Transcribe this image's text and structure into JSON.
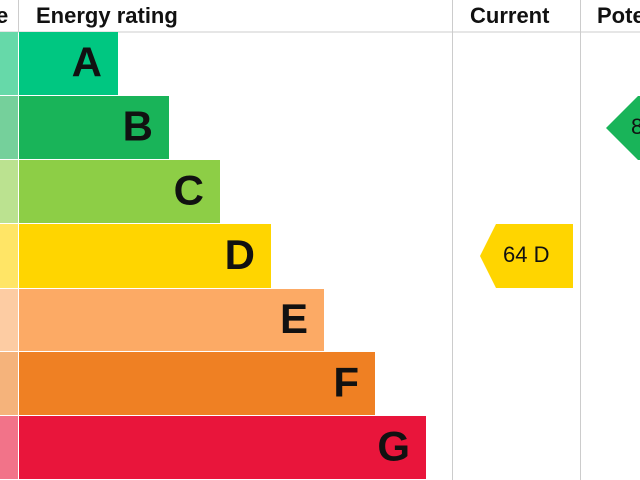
{
  "header": {
    "score": "e",
    "rating": "Energy rating",
    "current": "Current",
    "potential": "Pote"
  },
  "bands": [
    {
      "letter": "A",
      "color": "#00c781",
      "light": "#66d9a9"
    },
    {
      "letter": "B",
      "color": "#19b459",
      "light": "#75d09b"
    },
    {
      "letter": "C",
      "color": "#8dce46",
      "light": "#bbe290"
    },
    {
      "letter": "D",
      "color": "#ffd500",
      "light": "#ffe566"
    },
    {
      "letter": "E",
      "color": "#fcaa65",
      "light": "#fdcca3"
    },
    {
      "letter": "F",
      "color": "#ef8023",
      "light": "#f5b37b"
    },
    {
      "letter": "G",
      "color": "#e9153b",
      "light": "#f27389"
    }
  ],
  "current": {
    "label": "64 D",
    "color": "#ffd500"
  },
  "potential": {
    "label": "8",
    "color": "#19b459"
  }
}
